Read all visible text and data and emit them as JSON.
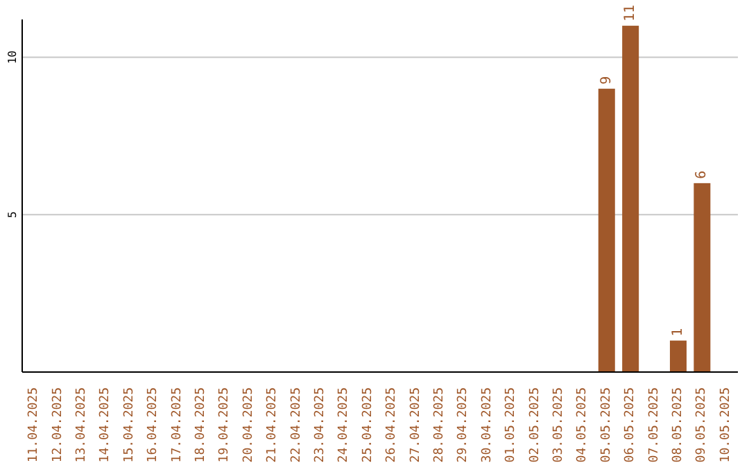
{
  "chart_data": {
    "type": "bar",
    "categories": [
      "11.04.2025",
      "12.04.2025",
      "13.04.2025",
      "14.04.2025",
      "15.04.2025",
      "16.04.2025",
      "17.04.2025",
      "18.04.2025",
      "19.04.2025",
      "20.04.2025",
      "21.04.2025",
      "22.04.2025",
      "23.04.2025",
      "24.04.2025",
      "25.04.2025",
      "26.04.2025",
      "27.04.2025",
      "28.04.2025",
      "29.04.2025",
      "30.04.2025",
      "01.05.2025",
      "02.05.2025",
      "03.05.2025",
      "04.05.2025",
      "05.05.2025",
      "06.05.2025",
      "07.05.2025",
      "08.05.2025",
      "09.05.2025",
      "10.05.2025"
    ],
    "values": [
      0,
      0,
      0,
      0,
      0,
      0,
      0,
      0,
      0,
      0,
      0,
      0,
      0,
      0,
      0,
      0,
      0,
      0,
      0,
      0,
      0,
      0,
      0,
      0,
      9,
      11,
      0,
      1,
      6,
      0
    ],
    "value_labels": [
      null,
      null,
      null,
      null,
      null,
      null,
      null,
      null,
      null,
      null,
      null,
      null,
      null,
      null,
      null,
      null,
      null,
      null,
      null,
      null,
      null,
      null,
      null,
      null,
      "9",
      "11",
      null,
      "1",
      "6",
      null
    ],
    "color": "#a0582a",
    "ylim": [
      0,
      11.2
    ],
    "yticks": [
      5,
      10
    ],
    "grid": "y"
  }
}
